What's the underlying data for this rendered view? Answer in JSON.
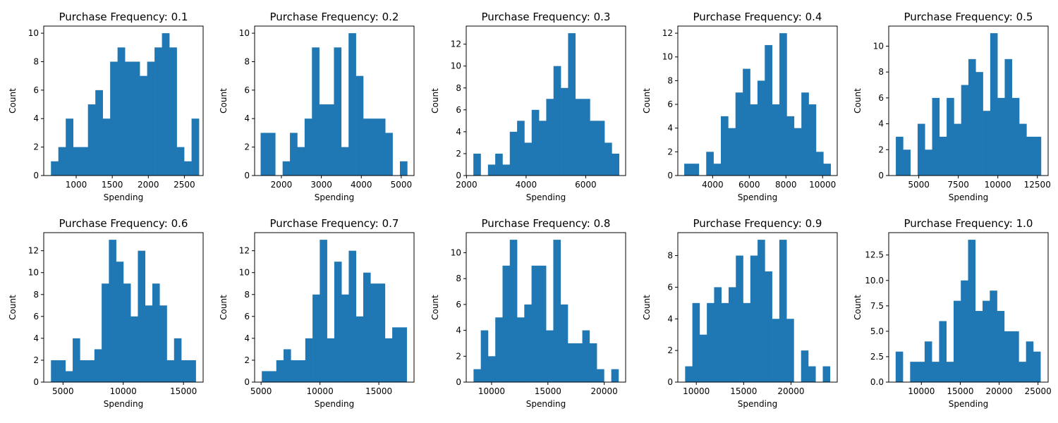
{
  "colors": {
    "bar": "#1f77b4",
    "axes": "#000000",
    "background": "#ffffff"
  },
  "chart_data": [
    {
      "type": "bar",
      "title": "Purchase Frequency: 0.1",
      "xlabel": "Spending",
      "ylabel": "Count",
      "xlim": [
        550,
        2760
      ],
      "ylim": [
        0,
        10.5
      ],
      "xticks": [
        {
          "v": 1000,
          "label": "1000"
        },
        {
          "v": 1500,
          "label": "1500"
        },
        {
          "v": 2000,
          "label": "2000"
        },
        {
          "v": 2500,
          "label": "2500"
        }
      ],
      "yticks": [
        {
          "v": 0,
          "label": "0"
        },
        {
          "v": 2,
          "label": "2"
        },
        {
          "v": 4,
          "label": "4"
        },
        {
          "v": 6,
          "label": "6"
        },
        {
          "v": 8,
          "label": "8"
        },
        {
          "v": 10,
          "label": "10"
        }
      ],
      "bins": {
        "start": 650,
        "width": 102.6
      },
      "values": [
        1,
        2,
        4,
        2,
        2,
        5,
        6,
        4,
        8,
        9,
        8,
        8,
        7,
        8,
        9,
        10,
        9,
        2,
        1,
        4
      ]
    },
    {
      "type": "bar",
      "title": "Purchase Frequency: 0.2",
      "xlabel": "Spending",
      "ylabel": "Count",
      "xlim": [
        1330,
        5320
      ],
      "ylim": [
        0,
        10.5
      ],
      "xticks": [
        {
          "v": 2000,
          "label": "2000"
        },
        {
          "v": 3000,
          "label": "3000"
        },
        {
          "v": 4000,
          "label": "4000"
        },
        {
          "v": 5000,
          "label": "5000"
        }
      ],
      "yticks": [
        {
          "v": 0,
          "label": "0"
        },
        {
          "v": 2,
          "label": "2"
        },
        {
          "v": 4,
          "label": "4"
        },
        {
          "v": 6,
          "label": "6"
        },
        {
          "v": 8,
          "label": "8"
        },
        {
          "v": 10,
          "label": "10"
        }
      ],
      "bins": {
        "start": 1480,
        "width": 183.5
      },
      "values": [
        3,
        3,
        0,
        1,
        3,
        2,
        4,
        9,
        5,
        5,
        9,
        2,
        10,
        7,
        4,
        4,
        4,
        3,
        0,
        1
      ]
    },
    {
      "type": "bar",
      "title": "Purchase Frequency: 0.3",
      "xlabel": "Spending",
      "ylabel": "Count",
      "xlim": [
        1990,
        7340
      ],
      "ylim": [
        0,
        13.65
      ],
      "xticks": [
        {
          "v": 2000,
          "label": "2000"
        },
        {
          "v": 4000,
          "label": "4000"
        },
        {
          "v": 6000,
          "label": "6000"
        }
      ],
      "yticks": [
        {
          "v": 0,
          "label": "0"
        },
        {
          "v": 2,
          "label": "2"
        },
        {
          "v": 4,
          "label": "4"
        },
        {
          "v": 6,
          "label": "6"
        },
        {
          "v": 8,
          "label": "8"
        },
        {
          "v": 10,
          "label": "10"
        },
        {
          "v": 12,
          "label": "12"
        }
      ],
      "bins": {
        "start": 2230,
        "width": 244.5
      },
      "values": [
        2,
        0,
        1,
        2,
        1,
        4,
        5,
        3,
        6,
        5,
        7,
        10,
        8,
        13,
        7,
        7,
        5,
        5,
        3,
        2
      ]
    },
    {
      "type": "bar",
      "title": "Purchase Frequency: 0.4",
      "xlabel": "Spending",
      "ylabel": "Count",
      "xlim": [
        2100,
        10800
      ],
      "ylim": [
        0,
        12.6
      ],
      "xticks": [
        {
          "v": 4000,
          "label": "4000"
        },
        {
          "v": 6000,
          "label": "6000"
        },
        {
          "v": 8000,
          "label": "8000"
        },
        {
          "v": 10000,
          "label": "10000"
        }
      ],
      "yticks": [
        {
          "v": 0,
          "label": "0"
        },
        {
          "v": 2,
          "label": "2"
        },
        {
          "v": 4,
          "label": "4"
        },
        {
          "v": 6,
          "label": "6"
        },
        {
          "v": 8,
          "label": "8"
        },
        {
          "v": 10,
          "label": "10"
        },
        {
          "v": 12,
          "label": "12"
        }
      ],
      "bins": {
        "start": 2450,
        "width": 399.6
      },
      "values": [
        1,
        1,
        0,
        2,
        1,
        5,
        4,
        7,
        9,
        6,
        8,
        11,
        6,
        12,
        5,
        4,
        7,
        6,
        2,
        1
      ]
    },
    {
      "type": "bar",
      "title": "Purchase Frequency: 0.5",
      "xlabel": "Spending",
      "ylabel": "Count",
      "xlim": [
        3100,
        13180
      ],
      "ylim": [
        0,
        11.55
      ],
      "xticks": [
        {
          "v": 5000,
          "label": "5000"
        },
        {
          "v": 7500,
          "label": "7500"
        },
        {
          "v": 10000,
          "label": "10000"
        },
        {
          "v": 12500,
          "label": "12500"
        }
      ],
      "yticks": [
        {
          "v": 0,
          "label": "0"
        },
        {
          "v": 2,
          "label": "2"
        },
        {
          "v": 4,
          "label": "4"
        },
        {
          "v": 6,
          "label": "6"
        },
        {
          "v": 8,
          "label": "8"
        },
        {
          "v": 10,
          "label": "10"
        }
      ],
      "bins": {
        "start": 3550,
        "width": 459
      },
      "values": [
        3,
        2,
        0,
        4,
        2,
        6,
        3,
        6,
        4,
        7,
        9,
        8,
        5,
        11,
        6,
        9,
        6,
        4,
        3,
        3
      ]
    },
    {
      "type": "bar",
      "title": "Purchase Frequency: 0.6",
      "xlabel": "Spending",
      "ylabel": "Count",
      "xlim": [
        3400,
        16630
      ],
      "ylim": [
        0,
        13.65
      ],
      "xticks": [
        {
          "v": 5000,
          "label": "5000"
        },
        {
          "v": 10000,
          "label": "10000"
        },
        {
          "v": 15000,
          "label": "15000"
        }
      ],
      "yticks": [
        {
          "v": 0,
          "label": "0"
        },
        {
          "v": 2,
          "label": "2"
        },
        {
          "v": 4,
          "label": "4"
        },
        {
          "v": 6,
          "label": "6"
        },
        {
          "v": 8,
          "label": "8"
        },
        {
          "v": 10,
          "label": "10"
        },
        {
          "v": 12,
          "label": "12"
        }
      ],
      "bins": {
        "start": 4000,
        "width": 601
      },
      "values": [
        2,
        2,
        1,
        4,
        2,
        2,
        3,
        9,
        13,
        11,
        9,
        6,
        12,
        7,
        9,
        7,
        2,
        4,
        2,
        2
      ]
    },
    {
      "type": "bar",
      "title": "Purchase Frequency: 0.7",
      "xlabel": "Spending",
      "ylabel": "Count",
      "xlim": [
        4450,
        17990
      ],
      "ylim": [
        0,
        13.65
      ],
      "xticks": [
        {
          "v": 5000,
          "label": "5000"
        },
        {
          "v": 10000,
          "label": "10000"
        },
        {
          "v": 15000,
          "label": "15000"
        }
      ],
      "yticks": [
        {
          "v": 0,
          "label": "0"
        },
        {
          "v": 2,
          "label": "2"
        },
        {
          "v": 4,
          "label": "4"
        },
        {
          "v": 6,
          "label": "6"
        },
        {
          "v": 8,
          "label": "8"
        },
        {
          "v": 10,
          "label": "10"
        },
        {
          "v": 12,
          "label": "12"
        }
      ],
      "bins": {
        "start": 5060,
        "width": 615.5
      },
      "values": [
        1,
        1,
        2,
        3,
        2,
        2,
        4,
        8,
        13,
        4,
        11,
        8,
        12,
        6,
        10,
        9,
        9,
        4,
        5,
        5
      ]
    },
    {
      "type": "bar",
      "title": "Purchase Frequency: 0.8",
      "xlabel": "Spending",
      "ylabel": "Count",
      "xlim": [
        7750,
        21900
      ],
      "ylim": [
        0,
        11.55
      ],
      "xticks": [
        {
          "v": 10000,
          "label": "10000"
        },
        {
          "v": 15000,
          "label": "15000"
        },
        {
          "v": 20000,
          "label": "20000"
        }
      ],
      "yticks": [
        {
          "v": 0,
          "label": "0"
        },
        {
          "v": 2,
          "label": "2"
        },
        {
          "v": 4,
          "label": "4"
        },
        {
          "v": 6,
          "label": "6"
        },
        {
          "v": 8,
          "label": "8"
        },
        {
          "v": 10,
          "label": "10"
        }
      ],
      "bins": {
        "start": 8400,
        "width": 643.5
      },
      "values": [
        1,
        4,
        2,
        5,
        9,
        11,
        5,
        6,
        9,
        9,
        4,
        11,
        6,
        3,
        3,
        4,
        3,
        1,
        0,
        1
      ]
    },
    {
      "type": "bar",
      "title": "Purchase Frequency: 0.9",
      "xlabel": "Spending",
      "ylabel": "Count",
      "xlim": [
        8050,
        24880
      ],
      "ylim": [
        0,
        9.45
      ],
      "xticks": [
        {
          "v": 10000,
          "label": "10000"
        },
        {
          "v": 15000,
          "label": "15000"
        },
        {
          "v": 20000,
          "label": "20000"
        }
      ],
      "yticks": [
        {
          "v": 0,
          "label": "0"
        },
        {
          "v": 2,
          "label": "2"
        },
        {
          "v": 4,
          "label": "4"
        },
        {
          "v": 6,
          "label": "6"
        },
        {
          "v": 8,
          "label": "8"
        }
      ],
      "bins": {
        "start": 8820,
        "width": 765
      },
      "values": [
        1,
        5,
        3,
        5,
        6,
        5,
        6,
        8,
        5,
        8,
        9,
        7,
        4,
        9,
        4,
        0,
        2,
        1,
        0,
        1
      ]
    },
    {
      "type": "bar",
      "title": "Purchase Frequency: 1.0",
      "xlabel": "Spending",
      "ylabel": "Count",
      "xlim": [
        5800,
        26300
      ],
      "ylim": [
        0,
        14.7
      ],
      "xticks": [
        {
          "v": 10000,
          "label": "10000"
        },
        {
          "v": 15000,
          "label": "15000"
        },
        {
          "v": 20000,
          "label": "20000"
        },
        {
          "v": 25000,
          "label": "25000"
        }
      ],
      "yticks": [
        {
          "v": 0,
          "label": "0.0"
        },
        {
          "v": 2.5,
          "label": "2.5"
        },
        {
          "v": 5,
          "label": "5.0"
        },
        {
          "v": 7.5,
          "label": "7.5"
        },
        {
          "v": 10,
          "label": "10.0"
        },
        {
          "v": 12.5,
          "label": "12.5"
        }
      ],
      "bins": {
        "start": 6690,
        "width": 931.5
      },
      "values": [
        3,
        0,
        2,
        2,
        4,
        2,
        6,
        2,
        8,
        10,
        14,
        7,
        8,
        9,
        7,
        5,
        5,
        2,
        4,
        3
      ]
    }
  ]
}
